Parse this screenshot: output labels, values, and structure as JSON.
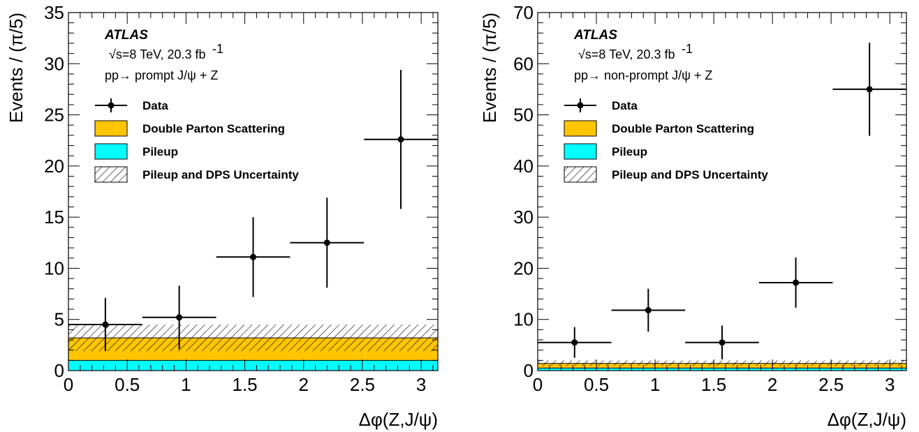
{
  "colors": {
    "dps": "#ffc600",
    "pileup": "#00ffff",
    "data": "#000000",
    "hatch": "#000000"
  },
  "chart_data": [
    {
      "type": "bar",
      "experiment": "ATLAS",
      "energy_line": "√s=8 TeV, 20.3 fb",
      "energy_superscript": "-1",
      "process": "pp→ prompt J/ψ + Z",
      "xlabel": "Δφ(Z,J/ψ)",
      "ylabel": "Events / (π/5)",
      "xlim": [
        0,
        3.1416
      ],
      "ylim": [
        0,
        35
      ],
      "x_ticks": [
        0,
        0.5,
        1,
        1.5,
        2,
        2.5,
        3
      ],
      "x_tick_labels": [
        "0",
        "0.5",
        "1",
        "1.5",
        "2",
        "2.5",
        "3"
      ],
      "y_ticks": [
        0,
        5,
        10,
        15,
        20,
        25,
        30,
        35
      ],
      "y_tick_labels": [
        "0",
        "5",
        "10",
        "15",
        "20",
        "25",
        "30",
        "35"
      ],
      "bin_edges": [
        0,
        0.6283,
        1.2566,
        1.885,
        2.5133,
        3.1416
      ],
      "pileup": [
        1.0,
        1.0,
        1.0,
        1.0,
        1.0
      ],
      "dps": [
        2.2,
        2.2,
        2.2,
        2.2,
        2.2
      ],
      "uncertainty": [
        {
          "low": 1.9,
          "high": 4.5
        },
        {
          "low": 1.9,
          "high": 4.5
        },
        {
          "low": 1.9,
          "high": 4.5
        },
        {
          "low": 1.9,
          "high": 4.5
        },
        {
          "low": 1.9,
          "high": 4.5
        }
      ],
      "data": [
        {
          "x": 0.314,
          "y": 4.5,
          "yerr_low": 2.6,
          "yerr_high": 2.6
        },
        {
          "x": 0.942,
          "y": 5.2,
          "yerr_low": 3.1,
          "yerr_high": 3.1
        },
        {
          "x": 1.571,
          "y": 11.1,
          "yerr_low": 3.9,
          "yerr_high": 3.9
        },
        {
          "x": 2.199,
          "y": 12.5,
          "yerr_low": 4.4,
          "yerr_high": 4.4
        },
        {
          "x": 2.827,
          "y": 22.6,
          "yerr_low": 6.8,
          "yerr_high": 6.8
        }
      ],
      "legend": [
        "Data",
        "Double Parton Scattering",
        "Pileup",
        "Pileup and DPS Uncertainty"
      ],
      "legend_position": "top-left"
    },
    {
      "type": "bar",
      "experiment": "ATLAS",
      "energy_line": "√s=8 TeV, 20.3 fb",
      "energy_superscript": "-1",
      "process": "pp→ non-prompt J/ψ + Z",
      "xlabel": "Δφ(Z,J/ψ)",
      "ylabel": "Events / (π/5)",
      "xlim": [
        0,
        3.1416
      ],
      "ylim": [
        0,
        70
      ],
      "x_ticks": [
        0,
        0.5,
        1,
        1.5,
        2,
        2.5,
        3
      ],
      "x_tick_labels": [
        "0",
        "0.5",
        "1",
        "1.5",
        "2",
        "2.5",
        "3"
      ],
      "y_ticks": [
        0,
        10,
        20,
        30,
        40,
        50,
        60,
        70
      ],
      "y_tick_labels": [
        "0",
        "10",
        "20",
        "30",
        "40",
        "50",
        "60",
        "70"
      ],
      "bin_edges": [
        0,
        0.6283,
        1.2566,
        1.885,
        2.5133,
        3.1416
      ],
      "pileup": [
        0.5,
        0.5,
        0.5,
        0.5,
        0.5
      ],
      "dps": [
        0.9,
        0.9,
        0.9,
        0.9,
        0.9
      ],
      "uncertainty": [
        {
          "low": 0.9,
          "high": 2.0
        },
        {
          "low": 0.9,
          "high": 2.0
        },
        {
          "low": 0.9,
          "high": 2.0
        },
        {
          "low": 0.9,
          "high": 2.0
        },
        {
          "low": 0.9,
          "high": 2.0
        }
      ],
      "data": [
        {
          "x": 0.314,
          "y": 5.5,
          "yerr_low": 3.0,
          "yerr_high": 3.0
        },
        {
          "x": 0.942,
          "y": 11.8,
          "yerr_low": 4.2,
          "yerr_high": 4.2
        },
        {
          "x": 1.571,
          "y": 5.5,
          "yerr_low": 3.3,
          "yerr_high": 3.3
        },
        {
          "x": 2.199,
          "y": 17.2,
          "yerr_low": 4.9,
          "yerr_high": 4.9
        },
        {
          "x": 2.827,
          "y": 55.0,
          "yerr_low": 9.1,
          "yerr_high": 9.1
        }
      ],
      "legend": [
        "Data",
        "Double Parton Scattering",
        "Pileup",
        "Pileup and DPS Uncertainty"
      ],
      "legend_position": "top-left"
    }
  ]
}
